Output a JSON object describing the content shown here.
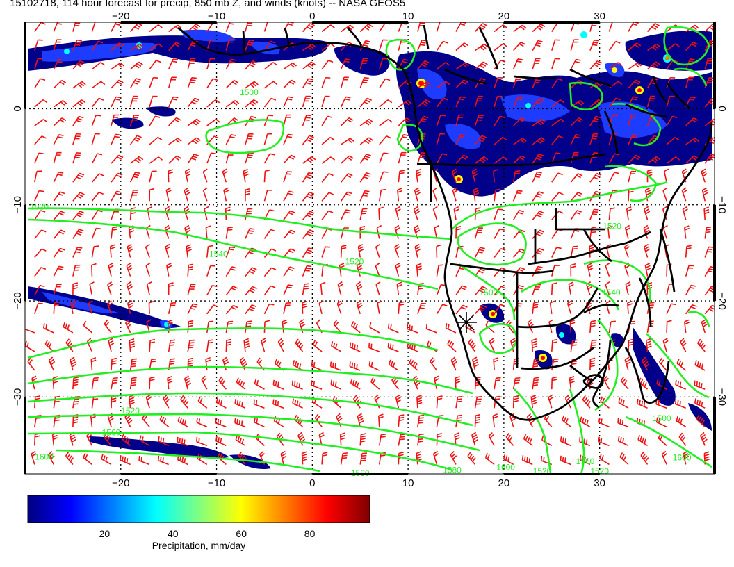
{
  "title": "15102718, 114 hour forecast for precip, 850 mb Z, and winds (knots) -- NASA GEOS5",
  "map": {
    "lon_range": [
      -30,
      42
    ],
    "lat_range": [
      -38,
      9
    ],
    "lon_ticks": [
      "-20",
      "-10",
      "0",
      "10",
      "20",
      "30"
    ],
    "lat_ticks": [
      "0",
      "-10",
      "-20",
      "-30"
    ],
    "contour_color": "#22ee22",
    "wind_color": "#ee1111",
    "coast_color": "#000000",
    "contour_labels": [
      {
        "text": "1500",
        "lon": -6.6,
        "lat": 1.4
      },
      {
        "text": "1520",
        "lon": -28.5,
        "lat": -10.5
      },
      {
        "text": "1540",
        "lon": -9.8,
        "lat": -15.4
      },
      {
        "text": "1520",
        "lon": 4.4,
        "lat": -16.2
      },
      {
        "text": "1500",
        "lon": 18.4,
        "lat": -19.4
      },
      {
        "text": "1540",
        "lon": 31.2,
        "lat": -19.4
      },
      {
        "text": "1520",
        "lon": 31.3,
        "lat": -12.5
      },
      {
        "text": "1500",
        "lon": 36.5,
        "lat": -32.5
      },
      {
        "text": "1520",
        "lon": -19.0,
        "lat": -31.7
      },
      {
        "text": "1560",
        "lon": -21.0,
        "lat": -34.0
      },
      {
        "text": "1600",
        "lon": -28.0,
        "lat": -36.5
      },
      {
        "text": "1580",
        "lon": 5.0,
        "lat": -38.2
      },
      {
        "text": "1580",
        "lon": 14.6,
        "lat": -37.9
      },
      {
        "text": "1600",
        "lon": 20.2,
        "lat": -37.6
      },
      {
        "text": "1520",
        "lon": 24.0,
        "lat": -38.0
      },
      {
        "text": "1560",
        "lon": 28.5,
        "lat": -37.0
      },
      {
        "text": "1520",
        "lon": 30.0,
        "lat": -38.0
      },
      {
        "text": "1600",
        "lon": 38.6,
        "lat": -36.6
      }
    ]
  },
  "colorbar": {
    "label": "Precipitation, mm/day",
    "ticks": [
      "20",
      "40",
      "60",
      "80"
    ],
    "range": [
      0,
      100
    ],
    "colors": [
      "#00007f",
      "#0000ff",
      "#0080ff",
      "#00ffff",
      "#80ff80",
      "#ffff00",
      "#ff8000",
      "#ff0000",
      "#7f0000"
    ]
  }
}
